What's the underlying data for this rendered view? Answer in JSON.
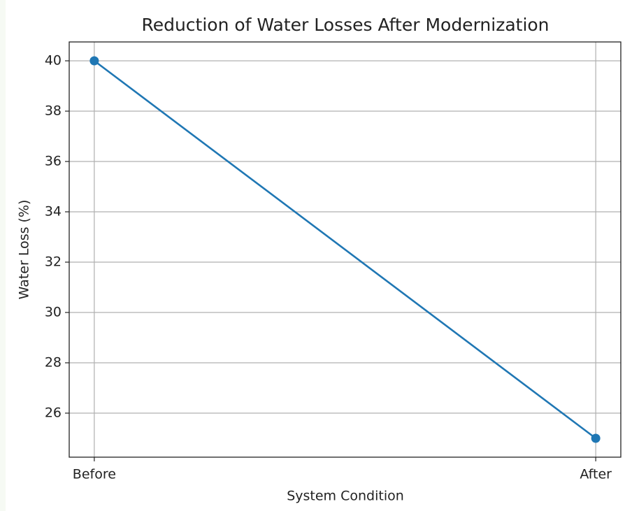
{
  "chart_data": {
    "type": "line",
    "title": "Reduction of Water Losses After Modernization",
    "x_label": "System Condition",
    "y_label": "Water Loss (%)",
    "categories": [
      "Before",
      "After"
    ],
    "series": [
      {
        "name": "Water Loss",
        "color": "#1f77b4",
        "values": [
          40,
          25
        ]
      }
    ],
    "ylim": [
      24.25,
      40.75
    ],
    "yticks": [
      26,
      28,
      30,
      32,
      34,
      36,
      38,
      40
    ],
    "grid": true
  }
}
